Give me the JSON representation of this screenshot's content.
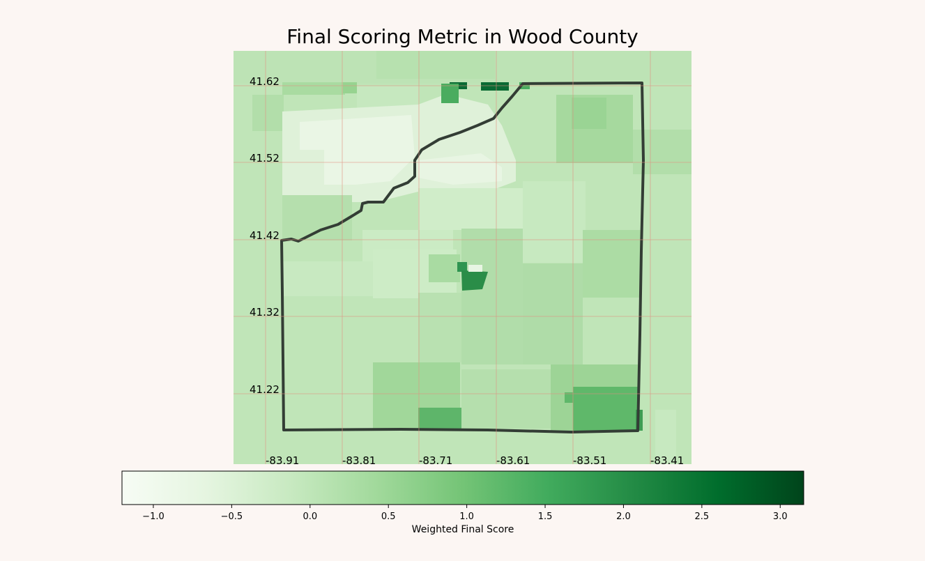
{
  "title": "Final Scoring Metric in Wood County",
  "map": {
    "lat_labels": [
      "41.62",
      "41.52",
      "41.42",
      "41.32",
      "41.22"
    ],
    "lon_labels": [
      "-83.91",
      "-83.81",
      "-83.71",
      "-83.61",
      "-83.51",
      "-83.41"
    ],
    "gridline_color": "#e08f80"
  },
  "colorbar": {
    "label": "Weighted Final Score",
    "ticks": [
      "−1.0",
      "−0.5",
      "0.0",
      "0.5",
      "1.0",
      "1.5",
      "2.0",
      "2.5",
      "3.0"
    ],
    "range": [
      -1.2,
      3.15
    ],
    "colormap": "Greens",
    "colors": [
      "#f7fcf5",
      "#e5f5e0",
      "#c7e9c0",
      "#a1d99b",
      "#74c476",
      "#41ab5d",
      "#238b45",
      "#006d2c",
      "#00441b"
    ]
  }
}
